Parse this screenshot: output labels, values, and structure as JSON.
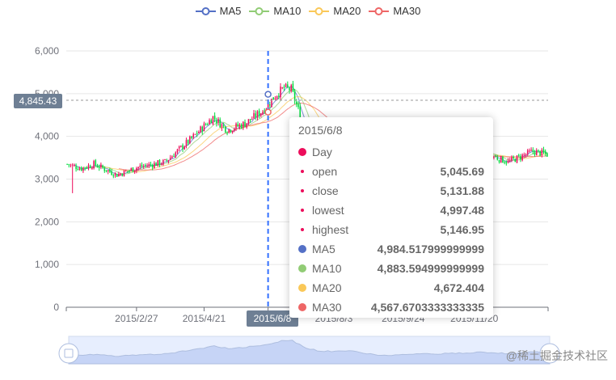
{
  "legend": [
    {
      "name": "MA5",
      "color": "#5470c6"
    },
    {
      "name": "MA10",
      "color": "#91cc75"
    },
    {
      "name": "MA20",
      "color": "#fac858"
    },
    {
      "name": "MA30",
      "color": "#ee6666"
    }
  ],
  "axis_pointer": {
    "y_label": "4,845.43",
    "x_label": "2015/6/8"
  },
  "tooltip": {
    "date": "2015/6/8",
    "series_name": "Day",
    "series_color": "#ec0d5b",
    "rows": [
      {
        "name": "open",
        "value": "5,045.69"
      },
      {
        "name": "close",
        "value": "5,131.88"
      },
      {
        "name": "lowest",
        "value": "4,997.48"
      },
      {
        "name": "highest",
        "value": "5,146.95"
      }
    ],
    "ma_rows": [
      {
        "name": "MA5",
        "value": "4,984.517999999999",
        "color": "#5470c6"
      },
      {
        "name": "MA10",
        "value": "4,883.594999999999",
        "color": "#91cc75"
      },
      {
        "name": "MA20",
        "value": "4,672.404",
        "color": "#fac858"
      },
      {
        "name": "MA30",
        "value": "4,567.6703333333335",
        "color": "#ee6666"
      }
    ]
  },
  "watermark": "@稀土掘金技术社区",
  "chart_data": {
    "type": "candlestick",
    "ylim": [
      0,
      6000
    ],
    "y_ticks": [
      "6,000",
      "5,000",
      "4,000",
      "3,000",
      "2,000",
      "1,000",
      "0"
    ],
    "x_ticks": [
      "2015/2/27",
      "2015/4/21",
      "2015/6/8",
      "2015/8/3",
      "2015/9/24",
      "2015/11/20"
    ],
    "series": [
      {
        "name": "Day",
        "up_color": "#ec0d5b",
        "down_color": "#00da3c"
      },
      {
        "name": "MA5",
        "color": "#5470c6"
      },
      {
        "name": "MA10",
        "color": "#91cc75"
      },
      {
        "name": "MA20",
        "color": "#fac858"
      },
      {
        "name": "MA30",
        "color": "#ee6666"
      }
    ],
    "close_anchors": [
      [
        0,
        3350
      ],
      [
        8,
        3250
      ],
      [
        15,
        3350
      ],
      [
        28,
        3100
      ],
      [
        40,
        3280
      ],
      [
        55,
        3400
      ],
      [
        70,
        3950
      ],
      [
        82,
        4450
      ],
      [
        90,
        4150
      ],
      [
        100,
        4300
      ],
      [
        110,
        4600
      ],
      [
        118,
        5000
      ],
      [
        122,
        5132
      ],
      [
        126,
        5100
      ],
      [
        133,
        4250
      ],
      [
        142,
        3700
      ],
      [
        160,
        3800
      ],
      [
        175,
        3150
      ],
      [
        195,
        3350
      ],
      [
        215,
        3450
      ],
      [
        235,
        3600
      ],
      [
        248,
        3400
      ],
      [
        262,
        3650
      ],
      [
        270,
        3580
      ]
    ],
    "x_tick_index": [
      39,
      77,
      113,
      150,
      189,
      229
    ]
  }
}
